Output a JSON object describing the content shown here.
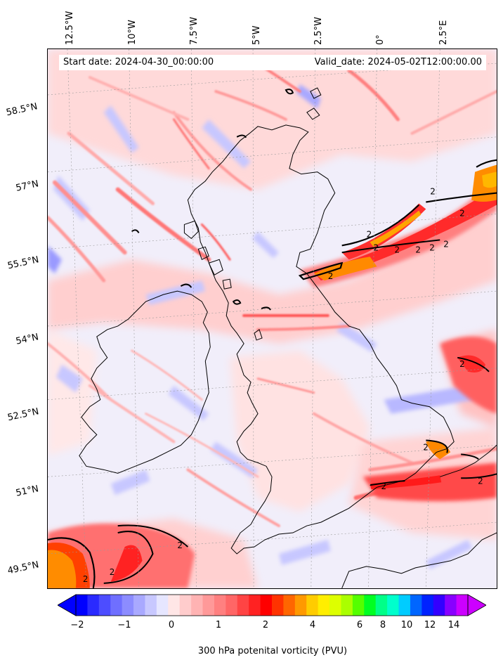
{
  "header": {
    "start_date": "Start date: 2024-04-30_00:00:00",
    "valid_date": "Valid_date: 2024-05-02T12:00:00.00"
  },
  "axes": {
    "lon_labels": [
      "12.5°W",
      "10°W",
      "7.5°W",
      "5°W",
      "2.5°W",
      "0°",
      "2.5°E"
    ],
    "lat_labels": [
      "58.5°N",
      "57°N",
      "55.5°N",
      "54°N",
      "52.5°N",
      "51°N",
      "49.5°N"
    ]
  },
  "contour": {
    "level_label": "2"
  },
  "colorbar": {
    "label": "300 hPa potenital vorticity (PVU)",
    "ticks": [
      "−2",
      "−1",
      "0",
      "1",
      "2",
      "4",
      "6",
      "8",
      "10",
      "12",
      "14"
    ],
    "colors": [
      "#0000ff",
      "#2a2aff",
      "#4d4dff",
      "#6f6fff",
      "#8c8cff",
      "#a9a9ff",
      "#c8c8ff",
      "#e6e6ff",
      "#ffe6e6",
      "#ffcccc",
      "#ffb3b3",
      "#ff9999",
      "#ff8080",
      "#ff6666",
      "#ff4444",
      "#ff2222",
      "#ff0000",
      "#ff3300",
      "#ff6600",
      "#ff9900",
      "#ffcc00",
      "#ffee00",
      "#ddff00",
      "#aaff00",
      "#55ff00",
      "#00ff22",
      "#00ff88",
      "#00ffcc",
      "#00ccff",
      "#0066ff",
      "#0022ff",
      "#3300ff",
      "#8800ff",
      "#cc00ff"
    ]
  }
}
